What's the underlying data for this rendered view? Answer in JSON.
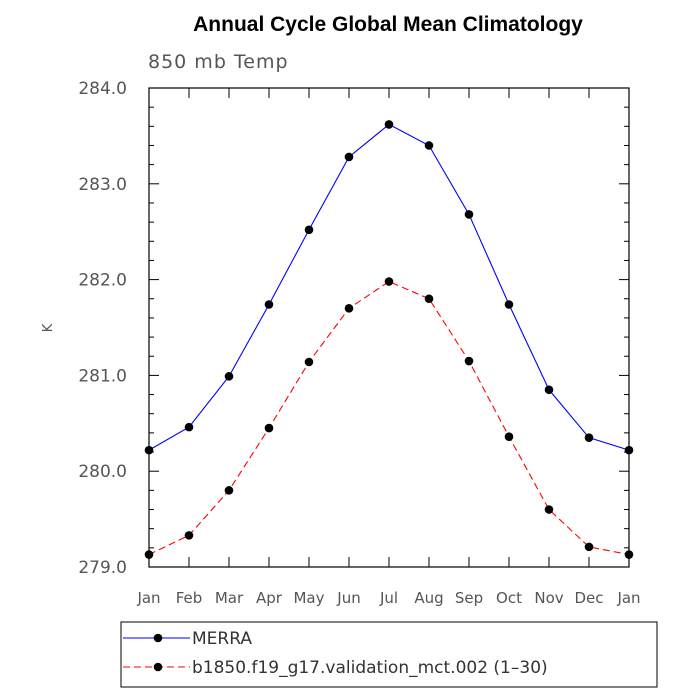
{
  "chart_data": {
    "type": "line",
    "title": "Annual Cycle Global Mean Climatology",
    "subtitle": "850 mb Temp",
    "xlabel": "",
    "ylabel": "K",
    "categories": [
      "Jan",
      "Feb",
      "Mar",
      "Apr",
      "May",
      "Jun",
      "Jul",
      "Aug",
      "Sep",
      "Oct",
      "Nov",
      "Dec",
      "Jan"
    ],
    "ylim": [
      279.0,
      284.0
    ],
    "yticks": [
      279.0,
      280.0,
      281.0,
      282.0,
      283.0,
      284.0
    ],
    "ytick_labels": [
      "279.0",
      "280.0",
      "281.0",
      "282.0",
      "283.0",
      "284.0"
    ],
    "series": [
      {
        "name": "MERRA",
        "color": "#0000ff",
        "dash": "solid",
        "values": [
          280.22,
          280.46,
          280.99,
          281.74,
          282.52,
          283.28,
          283.62,
          283.4,
          282.68,
          281.74,
          280.85,
          280.35,
          280.22
        ]
      },
      {
        "name": "b1850.f19_g17.validation_mct.002 (1–30)",
        "color": "#ff0000",
        "dash": "dashed",
        "values": [
          279.13,
          279.33,
          279.8,
          280.45,
          281.14,
          281.7,
          281.98,
          281.8,
          281.15,
          280.36,
          279.6,
          279.21,
          279.13
        ]
      }
    ],
    "legend": "bottom"
  }
}
